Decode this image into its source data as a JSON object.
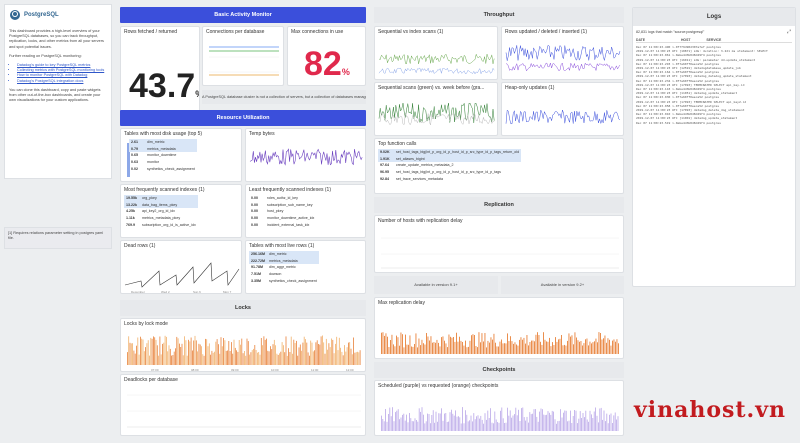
{
  "intro": {
    "logo_text": "PostgreSQL",
    "para1": "This dashboard provides a high-level overview of your PostgreSQL databases, so you can track throughput, replication, locks, and other metrics from all your servers and spot potential issues.",
    "para2": "Further reading on PostgreSQL monitoring:",
    "links": [
      "Datadog's guide to key PostgreSQL metrics",
      "Collecting metrics with PostgreSQL monitoring tools",
      "How to monitor PostgreSQL with Datadog",
      "Datadog's PostgreSQL integration docs"
    ],
    "para3": "You can clone this dashboard, copy and paste widgets from other out-of-the-box dashboards, and create your own visualizations for your custom applications."
  },
  "note": "[1] Requires relations parameter setting in postgres yaml file.",
  "activity": {
    "header": "Basic Activity Monitor",
    "rows_title": "Rows fetched / returned",
    "rows_value": "43.7",
    "rows_unit": "%",
    "conn_title": "Connections per database",
    "maxconn_title": "Max connections in use",
    "maxconn_value": "82",
    "maxconn_unit": "%",
    "caption": "A PostgreSQL database cluster is not a collection of servers, but a collection of databases managed by a single server."
  },
  "resource": {
    "header": "Resource Utilization",
    "disk_title": "Tables with most disk usage (top 5)",
    "disk_rows": [
      {
        "v": "2.61",
        "name": "dim_metric"
      },
      {
        "v": "0.79",
        "name": "metrics_metadata"
      },
      {
        "v": "0.65",
        "name": "monitor_downtime"
      },
      {
        "v": "0.63",
        "name": "monitor"
      },
      {
        "v": "0.02",
        "name": "synthetics_check_assignment"
      }
    ],
    "temp_title": "Temp bytes",
    "seqidx_title": "Most frequently scanned indexes (1)",
    "seqidx_rows": [
      {
        "v": "19.55k",
        "name": "org_pkey"
      },
      {
        "v": "13.22k",
        "name": "data_bag_items_pkey"
      },
      {
        "v": "4.25k",
        "name": "api_key2_org_id_idx"
      },
      {
        "v": "1.11k",
        "name": "metrics_metadata_pkey"
      },
      {
        "v": "769.9",
        "name": "subscription_org_id_is_active_idx"
      }
    ],
    "leastidx_title": "Least frequently scanned indexes (1)",
    "leastidx_rows": [
      {
        "v": "0.00",
        "name": "roles_authz_id_key"
      },
      {
        "v": "0.00",
        "name": "subscription_sub_name_key"
      },
      {
        "v": "0.00",
        "name": "host_pkey"
      },
      {
        "v": "0.00",
        "name": "monitor_downtime_active_idx"
      },
      {
        "v": "0.00",
        "name": "incident_external_task_idx"
      }
    ],
    "dead_title": "Dead rows (1)",
    "dead_ticks": [
      "December",
      "Wed 2",
      "Sun 6",
      "Mon 7"
    ],
    "live_title": "Tables with most live rows (1)",
    "live_rows": [
      {
        "v": "256.16M",
        "name": "dim_metric"
      },
      {
        "v": "222.72M",
        "name": "metrics_metadata"
      },
      {
        "v": "91.78M",
        "name": "dim_aggr_metric"
      },
      {
        "v": "7.51M",
        "name": "dowson"
      },
      {
        "v": "3.35M",
        "name": "synthetics_check_assignment"
      }
    ]
  },
  "locks": {
    "header": "Locks",
    "mode_title": "Locks by lock mode",
    "deadlock_title": "Deadlocks per database",
    "ticks": [
      "07:00",
      "08:00",
      "09:00",
      "10:00",
      "11:00",
      "12:00"
    ]
  },
  "throughput": {
    "header": "Throughput",
    "seq_title": "Sequential vs index scans (1)",
    "rows_title": "Rows updated / deleted / inserted (1)",
    "seq2_title": "Sequential scans (green) vs. week before (gra...",
    "heap_title": "Heap-only updates (1)",
    "func_title": "Top function calls",
    "func_rows": [
      {
        "v": "9.02K",
        "name": "set_host_tags_big(int_p_org_id_p_host_id_p_src_type_id_p_tags_return_old"
      },
      {
        "v": "1.91K",
        "name": "set_aliases_bigint"
      },
      {
        "v": "97.64",
        "name": "create_update_metrics_metadata_2"
      },
      {
        "v": "96.95",
        "name": "set_host_tags_big(int_p_org_id_p_host_id_p_src_type_id_p_tags"
      },
      {
        "v": "92.84",
        "name": "set_trace_services_metadata"
      }
    ]
  },
  "replication": {
    "header": "Replication",
    "hosts_title": "Number of hosts with replication delay",
    "avail1": "Available in version 9.1+",
    "avail2": "Available in version 9.2+",
    "delay_title": "Max replication delay"
  },
  "checkpoints": {
    "header": "Checkpoints",
    "sched_title": "Scheduled (purple) vs requested (orange) checkpoints"
  },
  "logs": {
    "header": "Logs",
    "query": "82,831 logs that match \"source:postgresql\"",
    "col_date": "DATE",
    "col_host": "HOST",
    "col_service": "SERVICE",
    "lines": [
      "Dec 07 11:00:23.490  i-0f7f9d90d307a7ef  postgres",
      "2019-12-07 11:00:23 UTC [10871] LOG: duration: 3.221 ms statement: SELECT",
      "Dec 07 11:00:23.061  i-0ebe4d3b8d8d49f4  postgres",
      "2019-12-07 11:00:23 UTC [16011] LOG: parameter dd.update_statement",
      "Dec 07 11:00:23.293  i-0f7a60ff0eeca52  postgres",
      "2019-12-07 11:00:23 UTC [12591] datadogdatabase_update_job",
      "Dec 07 11:00:23.164  i-0f7a60ff0eeca52  postgres",
      "2019-12-07 11:00:23 UTC [17093] datadog_datadog_update_statement",
      "Dec 07 11:00:23.234  i-0f7a60ff0eeca52  postgres",
      "2019-12-07 11:00:23 UTC [17093] TERMINATED SELECT api_key.id",
      "Dec 07 11:00:23.143  i-0ebe4d3b8d8d49f4  postgres",
      "2019-12-07 11:00:23 UTC [11051] datadog_update_statement",
      "Dec 07 11:00:23.030  i-0f7a60ff0eeca52  postgres",
      "2019-12-07 11:00:23 UTC [17093] TERMINATED SELECT api_key2.id",
      "Dec 07 11:00:23.058  i-0f7a60ff0eeca52  postgres",
      "2019-12-07 11:00:23 UTC [17093] datadog_delete_dog_statement",
      "Dec 07 11:00:23.010  i-0ebe4d3b8d8d49f4  postgres",
      "2019-12-07 11:00:23 UTC [11001] datadog_update_statement",
      "Dec 07 11:00:23.519  i-0ebe4d3b8d8d49f4  postgres"
    ]
  },
  "brand": "vinahost.vn"
}
